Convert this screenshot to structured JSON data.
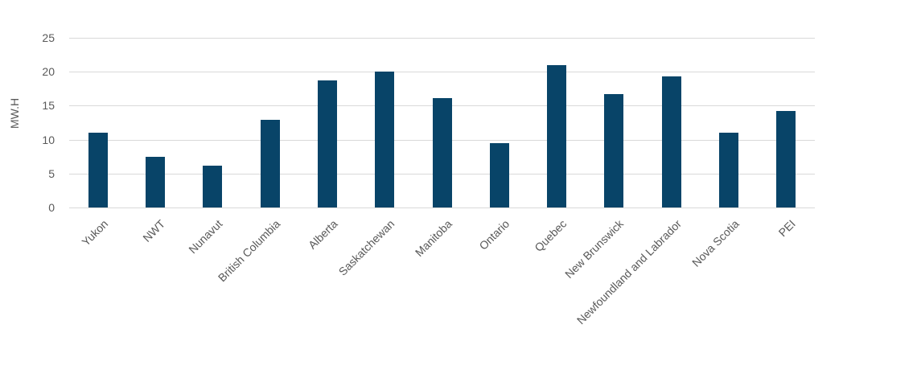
{
  "chart_data": {
    "type": "bar",
    "title": "",
    "xlabel": "",
    "ylabel": "MW.H",
    "ylim": [
      0,
      25
    ],
    "yticks": [
      0,
      5,
      10,
      15,
      20,
      25
    ],
    "grid": true,
    "legend": null,
    "bar_color": "#084468",
    "categories": [
      "Yukon",
      "NWT",
      "Nunavut",
      "British Columbia",
      "Alberta",
      "Saskatchewan",
      "Manitoba",
      "Ontario",
      "Quebec",
      "New Brunswick",
      "Newfoundland and Labrador",
      "Nova Scotia",
      "PEI"
    ],
    "values": [
      11.0,
      7.5,
      6.2,
      12.9,
      18.7,
      20.0,
      16.1,
      9.5,
      21.0,
      16.7,
      19.3,
      11.0,
      14.2
    ]
  }
}
